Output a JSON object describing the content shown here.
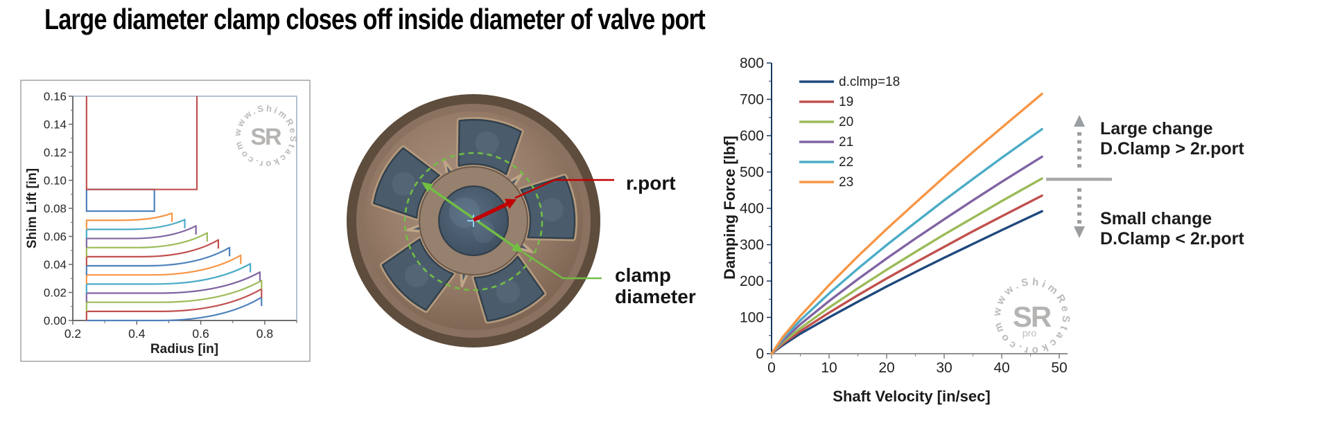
{
  "page": {
    "title": "Large diameter clamp closes off inside diameter of valve port"
  },
  "photo": {
    "labels": {
      "r_port": "r.port",
      "clamp_line1": "clamp",
      "clamp_line2": "diameter"
    },
    "annotation_colors": {
      "port_arrow": "#C00000",
      "clamp_arrow": "#72BF44"
    }
  },
  "side_annotations": {
    "large_line1": "Large change",
    "large_line2": "D.Clamp > 2r.port",
    "small_line1": "Small change",
    "small_line2": "D.Clamp < 2r.port",
    "arrow_color": "#9b9ea1",
    "divider_color": "#a8a8a8"
  },
  "watermarks": {
    "left": {
      "circle_text": "www.ShimReStackor.com",
      "logo": "SR",
      "sub": ""
    },
    "right": {
      "circle_text": "www.ShimReStackor.com",
      "logo": "SR",
      "sub": "pro"
    }
  },
  "chart_data": [
    {
      "type": "line",
      "name": "shim-stack-lift-profile",
      "title": "",
      "xlabel": "Radius [in]",
      "ylabel": "Shim Lift [in]",
      "xlim": [
        0.2,
        0.9
      ],
      "ylim": [
        0,
        0.16
      ],
      "grid": false,
      "xticks": {
        "values": [
          0.2,
          0.4,
          0.6,
          0.8
        ],
        "labels": [
          "0.2",
          "0.4",
          "0.6",
          "0.8"
        ],
        "minor": [
          0.3,
          0.5,
          0.7,
          0.9
        ]
      },
      "yticks": {
        "values": [
          0,
          0.02,
          0.04,
          0.06,
          0.08,
          0.1,
          0.12,
          0.14,
          0.16
        ],
        "labels": [
          "0.00",
          "0.02",
          "0.04",
          "0.06",
          "0.08",
          "0.10",
          "0.12",
          "0.14",
          "0.16"
        ],
        "minor": [
          0.01,
          0.03,
          0.05,
          0.07,
          0.09,
          0.11,
          0.13,
          0.15
        ]
      },
      "shim_curves": [
        {
          "color": "#4F81BD",
          "start_radius": 0.243,
          "start_lift": 0.0,
          "end_radius": 0.79,
          "end_lift": 0.0165
        },
        {
          "color": "#C0504D",
          "start_radius": 0.243,
          "start_lift": 0.0065,
          "end_radius": 0.79,
          "end_lift": 0.0225
        },
        {
          "color": "#9BBB59",
          "start_radius": 0.243,
          "start_lift": 0.013,
          "end_radius": 0.79,
          "end_lift": 0.0285
        },
        {
          "color": "#8064A2",
          "start_radius": 0.243,
          "start_lift": 0.0195,
          "end_radius": 0.785,
          "end_lift": 0.0345
        },
        {
          "color": "#4BACC6",
          "start_radius": 0.243,
          "start_lift": 0.026,
          "end_radius": 0.755,
          "end_lift": 0.0405
        },
        {
          "color": "#F79646",
          "start_radius": 0.243,
          "start_lift": 0.0325,
          "end_radius": 0.725,
          "end_lift": 0.0465
        },
        {
          "color": "#4F81BD",
          "start_radius": 0.243,
          "start_lift": 0.039,
          "end_radius": 0.69,
          "end_lift": 0.052
        },
        {
          "color": "#C0504D",
          "start_radius": 0.243,
          "start_lift": 0.0455,
          "end_radius": 0.655,
          "end_lift": 0.0575
        },
        {
          "color": "#9BBB59",
          "start_radius": 0.243,
          "start_lift": 0.052,
          "end_radius": 0.62,
          "end_lift": 0.0625
        },
        {
          "color": "#8064A2",
          "start_radius": 0.243,
          "start_lift": 0.0585,
          "end_radius": 0.585,
          "end_lift": 0.0675
        },
        {
          "color": "#4BACC6",
          "start_radius": 0.243,
          "start_lift": 0.065,
          "end_radius": 0.55,
          "end_lift": 0.072
        },
        {
          "color": "#F79646",
          "start_radius": 0.243,
          "start_lift": 0.0715,
          "end_radius": 0.51,
          "end_lift": 0.0765
        }
      ],
      "top_shim_rect": {
        "color": "#4F81BD",
        "x0": 0.243,
        "x1": 0.455,
        "y0": 0.078,
        "y1": 0.0935
      },
      "clamp_outline": {
        "color": "#C0504D",
        "x0": 0.243,
        "x1": 0.588,
        "y0": 0.0935,
        "y1": 0.16
      }
    },
    {
      "type": "line",
      "name": "damping-force-vs-shaft-velocity",
      "title": "",
      "xlabel": "Shaft Velocity [in/sec]",
      "ylabel": "Damping Force [lbf]",
      "xlim": [
        0,
        50
      ],
      "ylim": [
        0,
        800
      ],
      "grid": false,
      "legend_position": "top-left",
      "xticks": {
        "values": [
          0,
          10,
          20,
          30,
          40,
          50
        ],
        "labels": [
          "0",
          "10",
          "20",
          "30",
          "40",
          "50"
        ],
        "minor": [
          5,
          15,
          25,
          35,
          45
        ]
      },
      "yticks": {
        "values": [
          0,
          100,
          200,
          300,
          400,
          500,
          600,
          700,
          800
        ],
        "labels": [
          "0",
          "100",
          "200",
          "300",
          "400",
          "500",
          "600",
          "700",
          "800"
        ],
        "minor": [
          50,
          150,
          250,
          350,
          450,
          550,
          650,
          750
        ]
      },
      "x": [
        0,
        2,
        5,
        10,
        15,
        20,
        25,
        30,
        35,
        40,
        47
      ],
      "series": [
        {
          "name": "d.clmp=18",
          "color": "#1F497D",
          "values": [
            0,
            24,
            55,
            100,
            143,
            185,
            225,
            264,
            302,
            340,
            392
          ]
        },
        {
          "name": "19",
          "color": "#C0504D",
          "values": [
            0,
            28,
            62,
            113,
            161,
            207,
            251,
            294,
            337,
            378,
            435
          ]
        },
        {
          "name": "20",
          "color": "#9BBB59",
          "values": [
            0,
            32,
            70,
            127,
            180,
            231,
            280,
            328,
            374,
            420,
            482
          ]
        },
        {
          "name": "21",
          "color": "#8064A2",
          "values": [
            0,
            37,
            81,
            145,
            205,
            262,
            317,
            370,
            422,
            473,
            542
          ]
        },
        {
          "name": "22",
          "color": "#4BACC6",
          "values": [
            0,
            42,
            92,
            166,
            234,
            299,
            361,
            422,
            481,
            539,
            618
          ]
        },
        {
          "name": "23",
          "color": "#F79646",
          "values": [
            0,
            47,
            104,
            189,
            268,
            343,
            415,
            486,
            555,
            622,
            715
          ]
        }
      ]
    }
  ]
}
